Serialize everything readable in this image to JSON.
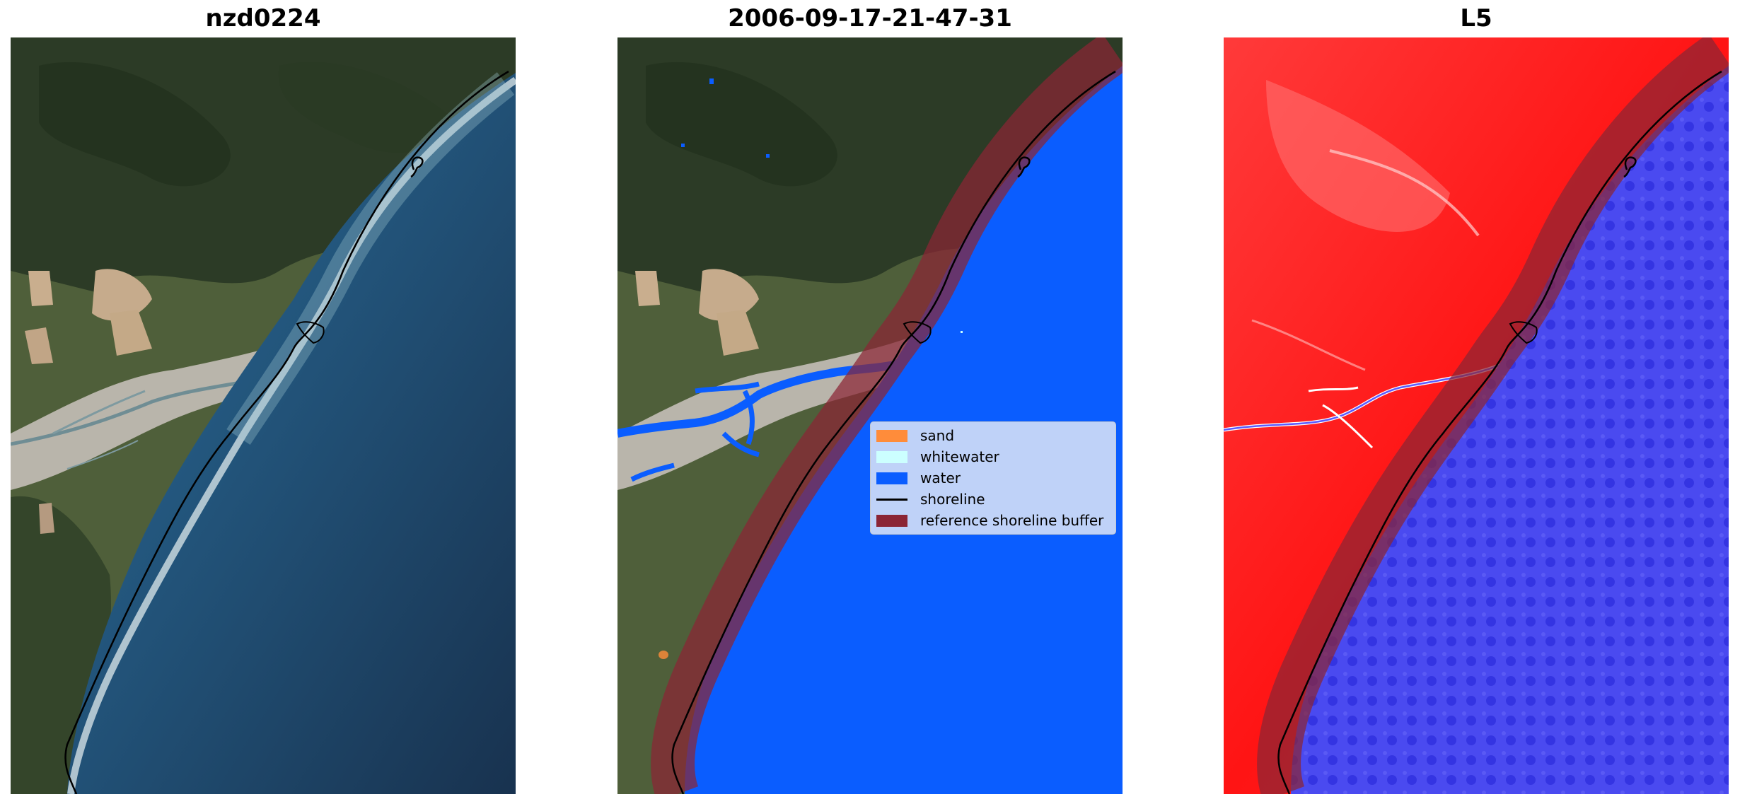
{
  "panels": [
    {
      "title": "nzd0224"
    },
    {
      "title": "2006-09-17-21-47-31"
    },
    {
      "title": "L5"
    }
  ],
  "legend": {
    "items": [
      {
        "label": "sand",
        "color": "#ff8c3a",
        "kind": "patch"
      },
      {
        "label": "whitewater",
        "color": "#ccffff",
        "kind": "patch"
      },
      {
        "label": "water",
        "color": "#0a5dff",
        "kind": "patch"
      },
      {
        "label": "shoreline",
        "color": "#000000",
        "kind": "line"
      },
      {
        "label": "reference shoreline buffer",
        "color": "#8b2535",
        "kind": "patch"
      }
    ]
  },
  "colors": {
    "land": "#4a5a36",
    "forest": "#2e3d28",
    "sea": "#1f4a70",
    "classified_water": "#0a5dff",
    "index_land": "#ff2020",
    "index_water": "#4040ee",
    "buffer": "#8b2535"
  }
}
